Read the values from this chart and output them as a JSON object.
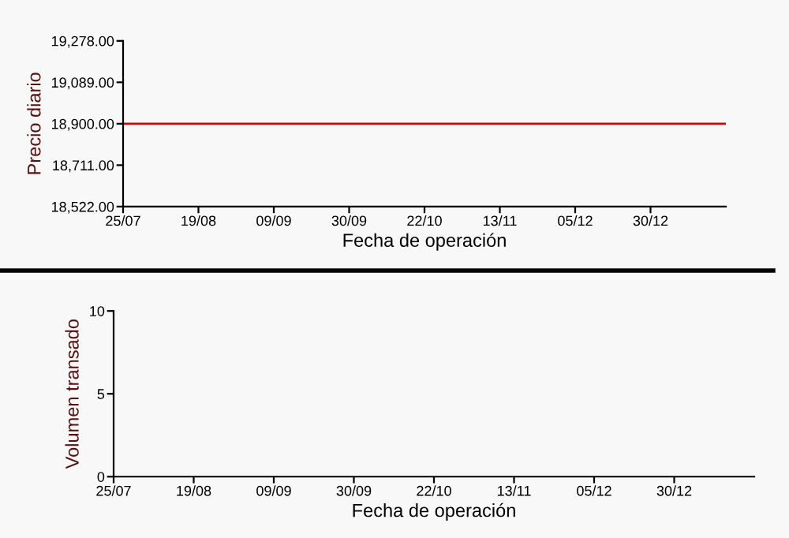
{
  "chart_data": [
    {
      "type": "line",
      "xlabel": "Fecha de operación",
      "ylabel": "Precio diario",
      "grid": false,
      "legend": false,
      "marker": "none",
      "line_style": "solid",
      "categories": [
        "25/07",
        "19/08",
        "09/09",
        "30/09",
        "22/10",
        "13/11",
        "05/12",
        "30/12",
        null
      ],
      "series": [
        {
          "color": "#e00000",
          "values": [
            18900,
            18900,
            18900,
            18900,
            18900,
            18900,
            18900,
            18900,
            18900
          ]
        }
      ],
      "ylim": [
        18522,
        19278
      ],
      "yticks": [
        {
          "value": 18522,
          "label": "18,522.00"
        },
        {
          "value": 18711,
          "label": "18,711.00"
        },
        {
          "value": 18900,
          "label": "18,900.00"
        },
        {
          "value": 19089,
          "label": "19,089.00"
        },
        {
          "value": 19278,
          "label": "19,278.00"
        }
      ]
    },
    {
      "type": "bar",
      "xlabel": "Fecha de operación",
      "ylabel": "Volumen transado",
      "grid": false,
      "legend": false,
      "categories": [
        "25/07",
        "19/08",
        "09/09",
        "30/09",
        "22/10",
        "13/11",
        "05/12",
        "30/12",
        null
      ],
      "ylim": [
        0,
        10
      ],
      "yticks": [
        0,
        5,
        10
      ]
    }
  ]
}
